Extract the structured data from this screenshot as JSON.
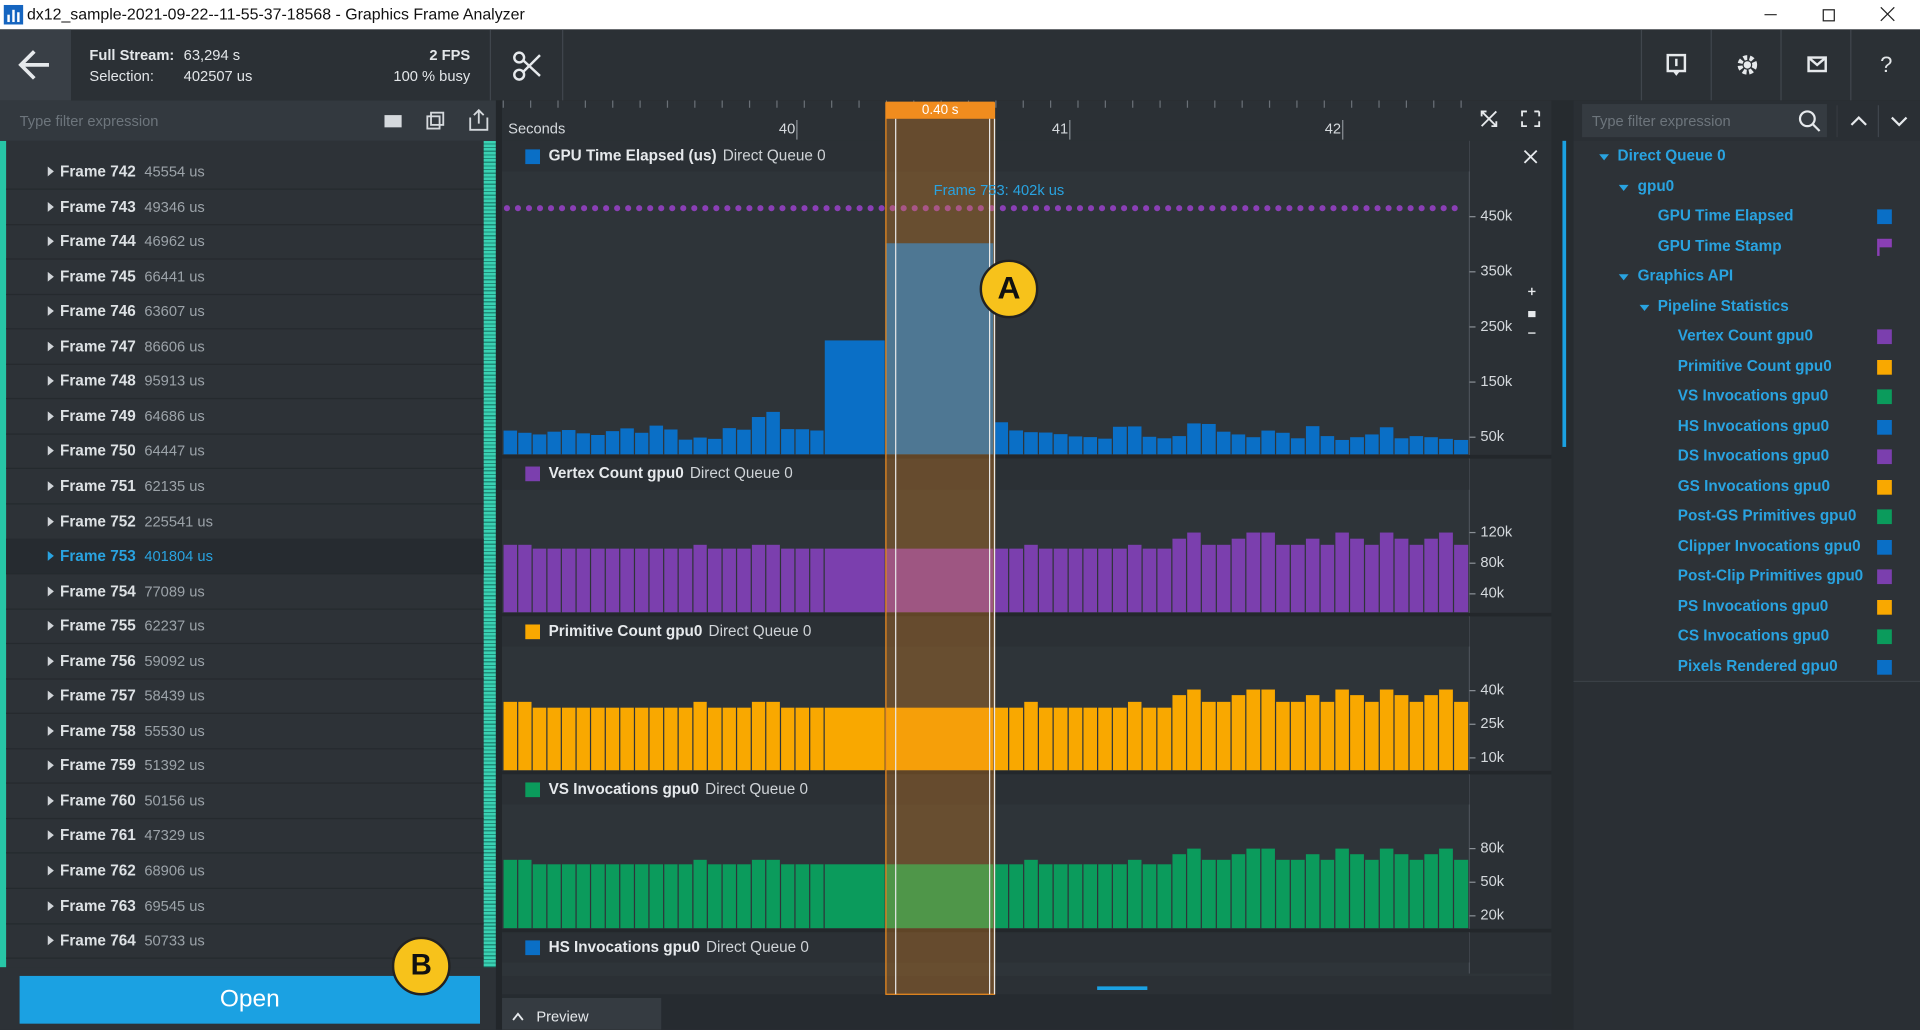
{
  "window": {
    "title": "dx12_sample-2021-09-22--11-55-37-18568 - Graphics Frame Analyzer"
  },
  "toolbar": {
    "full_stream_label": "Full Stream:",
    "full_stream_value": "63,294 s",
    "selection_label": "Selection:",
    "selection_value": "402507 us",
    "fps": "2 FPS",
    "busy": "100 % busy",
    "help_button": "?"
  },
  "left_panel": {
    "filter_placeholder": "Type filter expression",
    "frames": [
      {
        "name": "Frame 742",
        "value": "45554 us"
      },
      {
        "name": "Frame 743",
        "value": "49346 us"
      },
      {
        "name": "Frame 744",
        "value": "46962 us"
      },
      {
        "name": "Frame 745",
        "value": "66441 us"
      },
      {
        "name": "Frame 746",
        "value": "63607 us"
      },
      {
        "name": "Frame 747",
        "value": "86606 us"
      },
      {
        "name": "Frame 748",
        "value": "95913 us"
      },
      {
        "name": "Frame 749",
        "value": "64686 us"
      },
      {
        "name": "Frame 750",
        "value": "64447 us"
      },
      {
        "name": "Frame 751",
        "value": "62135 us"
      },
      {
        "name": "Frame 752",
        "value": "225541 us"
      },
      {
        "name": "Frame 753",
        "value": "401804 us",
        "selected": true
      },
      {
        "name": "Frame 754",
        "value": "77089 us"
      },
      {
        "name": "Frame 755",
        "value": "62237 us"
      },
      {
        "name": "Frame 756",
        "value": "59092 us"
      },
      {
        "name": "Frame 757",
        "value": "58439 us"
      },
      {
        "name": "Frame 758",
        "value": "55530 us"
      },
      {
        "name": "Frame 759",
        "value": "51392 us"
      },
      {
        "name": "Frame 760",
        "value": "50156 us"
      },
      {
        "name": "Frame 761",
        "value": "47329 us"
      },
      {
        "name": "Frame 762",
        "value": "68906 us"
      },
      {
        "name": "Frame 763",
        "value": "69545 us"
      },
      {
        "name": "Frame 764",
        "value": "50733 us"
      }
    ],
    "open_button": "Open"
  },
  "callouts": {
    "a": "A",
    "b": "B"
  },
  "timeline": {
    "selection": {
      "label": "0.40 s",
      "range": [
        40.362,
        40.76
      ],
      "color": "#f08c1e"
    },
    "extra_track": {
      "title": "HS Invocations gpu0",
      "subtitle": "Direct Queue 0",
      "color": "#0a6fc6"
    },
    "preview": "Preview"
  },
  "chart_data": [
    {
      "type": "bar",
      "title": "GPU Time Elapsed (us)",
      "subtitle": "Direct Queue 0",
      "color": "#0a6fc6",
      "xlabel": "Seconds",
      "annotation": "Frame 753: 402k us",
      "xlim": [
        38.96,
        42.5
      ],
      "xticks": [
        40,
        41,
        42
      ],
      "ylim": [
        19000,
        521000
      ],
      "yticks": [
        {
          "value": 50000,
          "label": "50k"
        },
        {
          "value": 150000,
          "label": "150k"
        },
        {
          "value": 250000,
          "label": "250k"
        },
        {
          "value": 350000,
          "label": "350k"
        },
        {
          "value": 450000,
          "label": "450k"
        }
      ],
      "x": [
        38.961,
        39.015,
        39.068,
        39.122,
        39.175,
        39.229,
        39.282,
        39.336,
        39.389,
        39.443,
        39.496,
        39.55,
        39.603,
        39.657,
        39.71,
        39.764,
        39.817,
        39.871,
        39.924,
        39.978,
        40.031,
        40.085,
        40.138,
        40.362,
        40.76,
        40.814,
        40.869,
        40.923,
        40.977,
        41.032,
        41.086,
        41.14,
        41.194,
        41.249,
        41.303,
        41.357,
        41.412,
        41.466,
        41.52,
        41.575,
        41.629,
        41.683,
        41.738,
        41.792,
        41.846,
        41.901,
        41.955,
        42.009,
        42.063,
        42.118,
        42.172,
        42.226,
        42.281,
        42.335,
        42.389,
        42.444
      ],
      "values": [
        62000,
        58000,
        55000,
        60000,
        63000,
        57000,
        54000,
        61000,
        66000,
        58000,
        71000,
        64000,
        45554,
        49346,
        46962,
        66441,
        63607,
        86606,
        95913,
        64686,
        64447,
        62135,
        225541,
        401804,
        77089,
        62237,
        59092,
        58439,
        55530,
        51392,
        50156,
        47329,
        68906,
        69545,
        50733,
        48000,
        52000,
        75000,
        74000,
        60000,
        55000,
        50000,
        62000,
        58000,
        48000,
        70000,
        52000,
        45000,
        50000,
        55000,
        68000,
        48000,
        52000,
        50000,
        47000,
        45000
      ]
    },
    {
      "type": "bar",
      "title": "Vertex Count gpu0",
      "subtitle": "Direct Queue 0",
      "color": "#7b3fae",
      "xlim": [
        38.96,
        42.5
      ],
      "ylim": [
        16000,
        171000
      ],
      "yticks": [
        {
          "value": 40000,
          "label": "40k"
        },
        {
          "value": 80000,
          "label": "80k"
        },
        {
          "value": 120000,
          "label": "120k"
        }
      ],
      "x": [
        38.961,
        39.015,
        39.068,
        39.122,
        39.175,
        39.229,
        39.282,
        39.336,
        39.389,
        39.443,
        39.496,
        39.55,
        39.603,
        39.657,
        39.71,
        39.764,
        39.817,
        39.871,
        39.924,
        39.978,
        40.031,
        40.085,
        40.138,
        40.362,
        40.76,
        40.814,
        40.869,
        40.923,
        40.977,
        41.032,
        41.086,
        41.14,
        41.194,
        41.249,
        41.303,
        41.357,
        41.412,
        41.466,
        41.52,
        41.575,
        41.629,
        41.683,
        41.738,
        41.792,
        41.846,
        41.901,
        41.955,
        42.009,
        42.063,
        42.118,
        42.172,
        42.226,
        42.281,
        42.335,
        42.389,
        42.444
      ],
      "values": [
        104000,
        104000,
        99000,
        99000,
        99000,
        99000,
        99000,
        99000,
        99000,
        99000,
        99000,
        99000,
        99000,
        104000,
        99000,
        99000,
        99000,
        104000,
        104000,
        99000,
        99000,
        99000,
        99000,
        99000,
        99000,
        99000,
        104000,
        99000,
        99000,
        99000,
        99000,
        99000,
        99000,
        104000,
        99000,
        99000,
        112000,
        120000,
        104000,
        104000,
        112000,
        120000,
        120000,
        104000,
        104000,
        112000,
        104000,
        120000,
        112000,
        104000,
        120000,
        112000,
        104000,
        112000,
        120000,
        104000
      ]
    },
    {
      "type": "bar",
      "title": "Primitive Count gpu0",
      "subtitle": "Direct Queue 0",
      "color": "#f9a800",
      "xlim": [
        38.96,
        42.5
      ],
      "ylim": [
        4500,
        57500
      ],
      "yticks": [
        {
          "value": 10000,
          "label": "10k"
        },
        {
          "value": 25000,
          "label": "25k"
        },
        {
          "value": 40000,
          "label": "40k"
        }
      ],
      "x": [
        38.961,
        39.015,
        39.068,
        39.122,
        39.175,
        39.229,
        39.282,
        39.336,
        39.389,
        39.443,
        39.496,
        39.55,
        39.603,
        39.657,
        39.71,
        39.764,
        39.817,
        39.871,
        39.924,
        39.978,
        40.031,
        40.085,
        40.138,
        40.362,
        40.76,
        40.814,
        40.869,
        40.923,
        40.977,
        41.032,
        41.086,
        41.14,
        41.194,
        41.249,
        41.303,
        41.357,
        41.412,
        41.466,
        41.52,
        41.575,
        41.629,
        41.683,
        41.738,
        41.792,
        41.846,
        41.901,
        41.955,
        42.009,
        42.063,
        42.118,
        42.172,
        42.226,
        42.281,
        42.335,
        42.389,
        42.444
      ],
      "values": [
        35000,
        35000,
        32400,
        32400,
        32400,
        32400,
        32400,
        32400,
        32400,
        32400,
        32400,
        32400,
        32400,
        35000,
        32400,
        32400,
        32400,
        35000,
        35000,
        32400,
        32400,
        32400,
        32400,
        32400,
        32400,
        32400,
        35000,
        32400,
        32400,
        32400,
        32400,
        32400,
        32400,
        35000,
        32400,
        32400,
        38000,
        40500,
        35000,
        35000,
        38000,
        40500,
        40500,
        35000,
        35000,
        38000,
        35000,
        40500,
        38000,
        35000,
        40500,
        38000,
        35000,
        38000,
        40500,
        35000
      ]
    },
    {
      "type": "bar",
      "title": "VS Invocations gpu0",
      "subtitle": "Direct Queue 0",
      "color": "#0b9b5c",
      "xlim": [
        38.96,
        42.5
      ],
      "ylim": [
        9000,
        115000
      ],
      "yticks": [
        {
          "value": 20000,
          "label": "20k"
        },
        {
          "value": 50000,
          "label": "50k"
        },
        {
          "value": 80000,
          "label": "80k"
        }
      ],
      "x": [
        38.961,
        39.015,
        39.068,
        39.122,
        39.175,
        39.229,
        39.282,
        39.336,
        39.389,
        39.443,
        39.496,
        39.55,
        39.603,
        39.657,
        39.71,
        39.764,
        39.817,
        39.871,
        39.924,
        39.978,
        40.031,
        40.085,
        40.138,
        40.362,
        40.76,
        40.814,
        40.869,
        40.923,
        40.977,
        41.032,
        41.086,
        41.14,
        41.194,
        41.249,
        41.303,
        41.357,
        41.412,
        41.466,
        41.52,
        41.575,
        41.629,
        41.683,
        41.738,
        41.792,
        41.846,
        41.901,
        41.955,
        42.009,
        42.063,
        42.118,
        42.172,
        42.226,
        42.281,
        42.335,
        42.389,
        42.444
      ],
      "values": [
        70000,
        70000,
        66000,
        66000,
        66000,
        66000,
        66000,
        66000,
        66000,
        66000,
        66000,
        66000,
        66000,
        70000,
        66000,
        66000,
        66000,
        70000,
        70000,
        66000,
        66000,
        66000,
        66000,
        66000,
        66000,
        66000,
        70000,
        66000,
        66000,
        66000,
        66000,
        66000,
        66000,
        70000,
        66000,
        66000,
        75000,
        80000,
        70000,
        70000,
        75000,
        80000,
        80000,
        70000,
        70000,
        75000,
        70000,
        80000,
        75000,
        70000,
        80000,
        75000,
        70000,
        75000,
        80000,
        70000
      ]
    }
  ],
  "right_panel": {
    "filter_placeholder": "Type filter expression",
    "tree": [
      {
        "label": "Direct Queue 0",
        "level": 0,
        "expandable": true
      },
      {
        "label": "gpu0",
        "level": 1,
        "expandable": true
      },
      {
        "label": "GPU Time Elapsed",
        "level": 2,
        "color": "#0a6fc6"
      },
      {
        "label": "GPU Time Stamp",
        "level": 2,
        "color": "#8a3fb5",
        "marker": "flag"
      },
      {
        "label": "Graphics API",
        "level": 1,
        "expandable": true
      },
      {
        "label": "Pipeline Statistics",
        "level": 2,
        "expandable": true
      },
      {
        "label": "Vertex Count gpu0",
        "level": 3,
        "color": "#7b3fae"
      },
      {
        "label": "Primitive Count gpu0",
        "level": 3,
        "color": "#f9a800"
      },
      {
        "label": "VS Invocations gpu0",
        "level": 3,
        "color": "#0b9b5c"
      },
      {
        "label": "HS Invocations gpu0",
        "level": 3,
        "color": "#0a6fc6"
      },
      {
        "label": "DS Invocations gpu0",
        "level": 3,
        "color": "#7b3fae"
      },
      {
        "label": "GS Invocations gpu0",
        "level": 3,
        "color": "#f9a800"
      },
      {
        "label": "Post-GS Primitives gpu0",
        "level": 3,
        "color": "#0b9b5c"
      },
      {
        "label": "Clipper Invocations gpu0",
        "level": 3,
        "color": "#0a6fc6"
      },
      {
        "label": "Post-Clip Primitives gpu0",
        "level": 3,
        "color": "#7b3fae"
      },
      {
        "label": "PS Invocations gpu0",
        "level": 3,
        "color": "#f9a800"
      },
      {
        "label": "CS Invocations gpu0",
        "level": 3,
        "color": "#0b9b5c"
      },
      {
        "label": "Pixels Rendered gpu0",
        "level": 3,
        "color": "#0a6fc6"
      }
    ]
  }
}
